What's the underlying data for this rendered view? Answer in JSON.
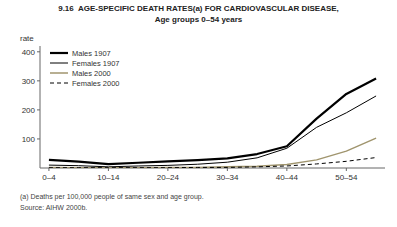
{
  "chart_data": {
    "type": "line",
    "title": "9.16  AGE-SPECIFIC DEATH RATES(a) FOR CARDIOVASCULAR DISEASE,",
    "subtitle": "Age groups 0–54 years",
    "ylabel": "rate",
    "annotations": [
      "(a) Deaths per 100,000 people of same sex and age group.",
      "Source: AIHW 2000b."
    ],
    "x": [
      0,
      1,
      2,
      3,
      4,
      5,
      6,
      7,
      8,
      9,
      10,
      11
    ],
    "xlim": [
      -0.3,
      11.3
    ],
    "xticks": [
      {
        "value": 0,
        "label": "0–4"
      },
      {
        "value": 2,
        "label": "10–14"
      },
      {
        "value": 4,
        "label": "20–24"
      },
      {
        "value": 6,
        "label": "30–34"
      },
      {
        "value": 8,
        "label": "40–44"
      },
      {
        "value": 10,
        "label": "50–54"
      }
    ],
    "ylim": [
      0,
      420
    ],
    "yticks": [
      100,
      200,
      300,
      400
    ],
    "grid": false,
    "legend": "upper left",
    "series": [
      {
        "name": "Males 1907",
        "color": "#000000",
        "line_style": "solid",
        "values": [
          28,
          22,
          13,
          18,
          23,
          27,
          33,
          48,
          75,
          170,
          255,
          308
        ]
      },
      {
        "name": "Females 1907",
        "color": "#000000",
        "line_style": "solid",
        "values": [
          10,
          8,
          4,
          7,
          9,
          13,
          20,
          35,
          68,
          140,
          190,
          248
        ]
      },
      {
        "name": "Males 2000",
        "color": "#a0956e",
        "line_style": "solid",
        "values": [
          2,
          1,
          1,
          1,
          2,
          2,
          4,
          6,
          12,
          28,
          58,
          103
        ]
      },
      {
        "name": "Females 2000",
        "color": "#000000",
        "line_style": "dashed",
        "values": [
          1,
          1,
          1,
          1,
          1,
          2,
          2,
          4,
          7,
          14,
          23,
          36
        ]
      }
    ]
  }
}
